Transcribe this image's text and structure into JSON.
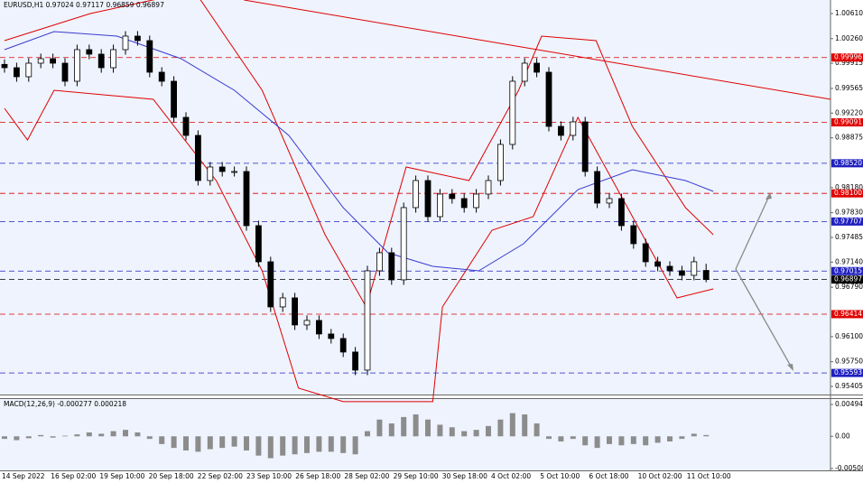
{
  "chart_data": {
    "type": "candlestick",
    "title": "EURUSD,H1 0.97024 0.97117 0.96859 0.96897",
    "ylim": [
      0.95292,
      1.00799
    ],
    "yticks": [
      {
        "value": 1.0061,
        "label": "1.00610"
      },
      {
        "value": 1.0026,
        "label": "1.00260"
      },
      {
        "value": 0.99915,
        "label": "0.99915"
      },
      {
        "value": 0.99565,
        "label": "0.99565"
      },
      {
        "value": 0.9922,
        "label": "0.99220"
      },
      {
        "value": 0.98875,
        "label": "0.98875"
      },
      {
        "value": 0.9818,
        "label": "0.98180"
      },
      {
        "value": 0.9783,
        "label": "0.97830"
      },
      {
        "value": 0.97485,
        "label": "0.97485"
      },
      {
        "value": 0.9714,
        "label": "0.97140"
      },
      {
        "value": 0.9679,
        "label": "0.96790"
      },
      {
        "value": 0.961,
        "label": "0.96100"
      },
      {
        "value": 0.9575,
        "label": "0.95750"
      },
      {
        "value": 0.95405,
        "label": "0.95405"
      }
    ],
    "x_labels": [
      "14 Sep 2022",
      "16 Sep 02:00",
      "19 Sep 10:00",
      "20 Sep 18:00",
      "22 Sep 02:00",
      "23 Sep 10:00",
      "26 Sep 18:00",
      "28 Sep 02:00",
      "29 Sep 10:00",
      "30 Sep 18:00",
      "4 Oct 02:00",
      "5 Oct 10:00",
      "6 Oct 18:00",
      "10 Oct 02:00",
      "11 Oct 10:00"
    ],
    "candles": {
      "open": [
        0.999,
        0.99854,
        0.99728,
        0.99917,
        0.9998,
        0.99917,
        0.99665,
        1.00106,
        1.00043,
        0.99854,
        1.00106,
        1.00295,
        1.00232,
        0.99791,
        0.99665,
        0.99161,
        0.98909,
        0.98279,
        0.98468,
        0.98405,
        0.98405,
        0.97649,
        0.97145,
        0.96515,
        0.96641,
        0.96263,
        0.96326,
        0.96137,
        0.96074,
        0.95885,
        0.95633,
        0.97019,
        0.97271,
        0.96893,
        0.97901,
        0.98279,
        0.97775,
        0.9809,
        0.98027,
        0.97901,
        0.9809,
        0.98279,
        0.98783,
        0.99665,
        0.99917,
        0.99791,
        0.99035,
        0.98909,
        0.99098,
        0.98405,
        0.97964,
        0.98027,
        0.97649,
        0.97397,
        0.97145,
        0.97082,
        0.97019,
        0.96956,
        0.97024
      ],
      "high": [
        0.9997,
        0.99924,
        0.99987,
        1.0005,
        1.0005,
        0.99987,
        1.00176,
        1.00176,
        1.00113,
        1.00176,
        1.00365,
        1.00365,
        1.00302,
        0.99861,
        0.99735,
        0.99231,
        0.98979,
        0.98538,
        0.98538,
        0.98475,
        0.98475,
        0.97719,
        0.97215,
        0.96711,
        0.96711,
        0.96396,
        0.96396,
        0.96207,
        0.96144,
        0.95955,
        0.97089,
        0.97341,
        0.97341,
        0.97971,
        0.98349,
        0.98349,
        0.9816,
        0.9816,
        0.98097,
        0.9816,
        0.98349,
        0.98853,
        0.99735,
        0.99987,
        0.99987,
        0.99861,
        0.99105,
        0.99168,
        0.99168,
        0.98475,
        0.98097,
        0.98097,
        0.97719,
        0.97467,
        0.97215,
        0.97152,
        0.97089,
        0.97215,
        0.97117
      ],
      "low": [
        0.99784,
        0.99658,
        0.99658,
        0.99847,
        0.99847,
        0.99595,
        0.99595,
        0.99973,
        0.99784,
        0.99784,
        1.00036,
        1.00162,
        0.99721,
        0.99595,
        0.99091,
        0.98839,
        0.98209,
        0.98209,
        0.98335,
        0.98335,
        0.97579,
        0.97075,
        0.96445,
        0.96445,
        0.96193,
        0.96193,
        0.96067,
        0.96004,
        0.95815,
        0.95563,
        0.95563,
        0.96949,
        0.96823,
        0.96823,
        0.97831,
        0.97705,
        0.97705,
        0.97957,
        0.97831,
        0.97831,
        0.9802,
        0.98209,
        0.98713,
        0.99595,
        0.99721,
        0.98965,
        0.98839,
        0.98839,
        0.98335,
        0.97894,
        0.97894,
        0.97579,
        0.97327,
        0.97075,
        0.97012,
        0.96949,
        0.96886,
        0.96886,
        0.96859
      ],
      "close": [
        0.99854,
        0.99728,
        0.99917,
        0.9998,
        0.99917,
        0.99665,
        1.00106,
        1.00043,
        0.99854,
        1.00106,
        1.00295,
        1.00232,
        0.99791,
        0.99665,
        0.99161,
        0.98909,
        0.98279,
        0.98468,
        0.98405,
        0.98405,
        0.97649,
        0.97145,
        0.96515,
        0.96641,
        0.96263,
        0.96326,
        0.96137,
        0.96074,
        0.95885,
        0.95633,
        0.97019,
        0.97271,
        0.96893,
        0.97901,
        0.98279,
        0.97775,
        0.9809,
        0.98027,
        0.97901,
        0.9809,
        0.98279,
        0.98783,
        0.99665,
        0.99917,
        0.99791,
        0.99035,
        0.98909,
        0.99098,
        0.98405,
        0.97964,
        0.98027,
        0.97649,
        0.97397,
        0.97145,
        0.97082,
        0.97019,
        0.96956,
        0.97145,
        0.96897
      ]
    },
    "lines": [
      {
        "color": "#e00000",
        "x": [
          0,
          7.1,
          15.7,
          21.3,
          26.5,
          29.9,
          33.2,
          38.4,
          42.5,
          44.4,
          48.9,
          51.9,
          56.3,
          58.6
        ],
        "values": [
          1.00232,
          1.0061,
          1.00925,
          0.99539,
          0.97523,
          0.96515,
          0.98468,
          0.98279,
          0.99539,
          1.00295,
          1.00232,
          0.99035,
          0.97901,
          0.97523
        ]
      },
      {
        "color": "#e00000",
        "x": [
          0,
          1.9,
          4.1,
          12.3,
          17.5,
          21.3,
          24.3,
          28,
          35.4,
          36.2,
          40.3,
          43.7,
          47.4,
          51.1,
          55.6,
          58.6
        ],
        "values": [
          0.99287,
          0.98846,
          0.99539,
          0.99413,
          0.98279,
          0.97019,
          0.95381,
          0.95192,
          0.95192,
          0.96515,
          0.97586,
          0.97775,
          0.99161,
          0.98027,
          0.96641,
          0.96767
        ]
      },
      {
        "color": "#3a3ad0",
        "x": [
          0,
          4.1,
          9.3,
          14.6,
          19,
          23.5,
          28,
          31.7,
          35.4,
          39.2,
          42.9,
          47.4,
          51.9,
          56.3,
          58.6
        ],
        "values": [
          1.00106,
          1.00358,
          1.00295,
          0.9998,
          0.99539,
          0.98909,
          0.97901,
          0.97271,
          0.97082,
          0.97019,
          0.97397,
          0.98153,
          0.9843,
          0.98279,
          0.98128
        ]
      },
      {
        "color": "#e00000",
        "x": [
          19.8,
          68.3
        ],
        "values": [
          1.00799,
          0.99413
        ]
      }
    ],
    "levels": [
      {
        "value": 0.99996,
        "label": "0.99996",
        "color": "#e00000"
      },
      {
        "value": 0.99091,
        "label": "0.99091",
        "color": "#e00000"
      },
      {
        "value": 0.9852,
        "label": "0.98520",
        "color": "#2020c0"
      },
      {
        "value": 0.981,
        "label": "0.98100",
        "color": "#e00000"
      },
      {
        "value": 0.97707,
        "label": "0.97707",
        "color": "#2020c0"
      },
      {
        "value": 0.97015,
        "label": "0.97015",
        "color": "#2020c0"
      },
      {
        "value": 0.96897,
        "label": "0.96897",
        "color": "#000000"
      },
      {
        "value": 0.96414,
        "label": "0.96414",
        "color": "#e00000"
      },
      {
        "value": 0.95593,
        "label": "0.95593",
        "color": "#2020c0"
      }
    ],
    "macd": {
      "label": "MACD(12,26,9) -0.000277 0.000218",
      "ylim": [
        -0.00529,
        0.00593
      ],
      "yticks": [
        0.004943,
        {
          "value": 0,
          "label": "0.00"
        },
        -0.005003
      ],
      "values": [
        -0.0004,
        -0.0006,
        -0.0003,
        0.0002,
        -0.0002,
        0.0001,
        0.0003,
        0.0006,
        0.0004,
        0.0008,
        0.001,
        0.0006,
        -0.0004,
        -0.0012,
        -0.0018,
        -0.0022,
        -0.0024,
        -0.002,
        -0.0018,
        -0.0016,
        -0.0022,
        -0.003,
        -0.0034,
        -0.003,
        -0.0028,
        -0.0026,
        -0.0024,
        -0.0024,
        -0.0026,
        -0.0028,
        0.0008,
        0.0026,
        0.002,
        0.003,
        0.0034,
        0.0026,
        0.0018,
        0.0014,
        0.0008,
        0.001,
        0.0016,
        0.0026,
        0.0036,
        0.0034,
        0.002,
        -0.0004,
        -0.0008,
        -0.0004,
        -0.0014,
        -0.0018,
        -0.0012,
        -0.0014,
        -0.0012,
        -0.0014,
        -0.001,
        -0.0008,
        -0.0004,
        0.0004,
        0.0002
      ]
    }
  }
}
